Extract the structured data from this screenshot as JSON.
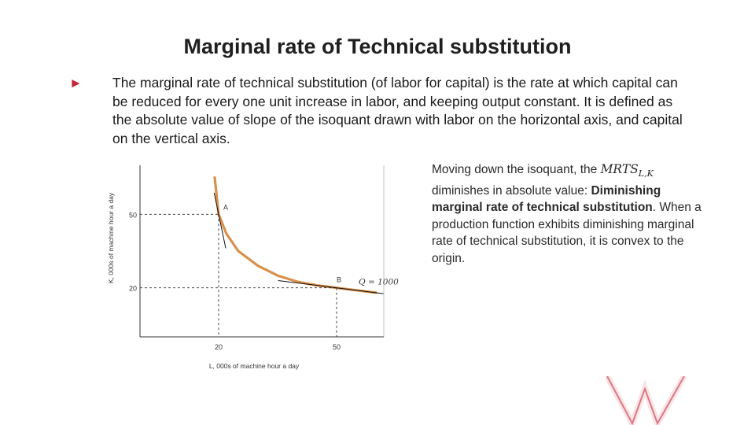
{
  "slide": {
    "title": "Marginal rate of Technical substitution",
    "bullet_glyph": "►",
    "bullet_text": "The marginal rate of technical substitution (of labor for capital) is the rate at which capital can be reduced for every one unit increase in labor, and keeping output constant. It is defined as the absolute value of slope of the isoquant drawn with labor on the horizontal axis, and capital on the vertical axis.",
    "note_part1": "Moving down the isoquant, the ",
    "note_mrts": "MRTS",
    "note_mrts_sub": "L,K",
    "note_part2": " diminishes in absolute value: ",
    "note_bold": "Diminishing marginal rate of technical substitution",
    "note_part3": ". When a production function exhibits diminishing marginal rate of technical substitution, it is convex to the origin."
  },
  "colors": {
    "accent": "#c0273a",
    "curve": "#d9904a",
    "axis": "#333333"
  },
  "chart_data": {
    "type": "line",
    "xlabel": "L, 000s of machine hour a day",
    "ylabel": "K, 000s of machine hour a day",
    "x_ticks": [
      "20",
      "50"
    ],
    "y_ticks": [
      "50",
      "20"
    ],
    "xlim": [
      0,
      62
    ],
    "ylim": [
      0,
      70
    ],
    "series": [
      {
        "values": [
          [
            19,
            65
          ],
          [
            20,
            50
          ],
          [
            22,
            42
          ],
          [
            25,
            35
          ],
          [
            30,
            29
          ],
          [
            35,
            25
          ],
          [
            40,
            22.5
          ],
          [
            45,
            21
          ],
          [
            50,
            20
          ],
          [
            55,
            19
          ],
          [
            60,
            18
          ]
        ]
      }
    ],
    "curve_label": "Q = 1000",
    "points": [
      {
        "label": "A",
        "x": 20,
        "y": 50
      },
      {
        "label": "B",
        "x": 50,
        "y": 20
      }
    ],
    "tangent_lines": 2,
    "grid": false
  }
}
